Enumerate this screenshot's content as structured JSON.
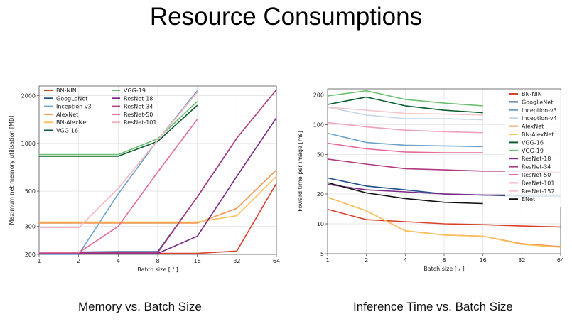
{
  "slide": {
    "title": "Resource Consumptions",
    "caption_left": "Memory vs. Batch Size",
    "caption_right": "Inference Time vs. Batch Size"
  },
  "chart_data": [
    {
      "type": "line",
      "title": "",
      "xlabel": "Batch size [ / ]",
      "ylabel": "Maximum net memory utilisation [MB]",
      "x_scale": "log2",
      "y_scale": "log",
      "x": [
        1,
        2,
        4,
        8,
        16,
        32,
        64
      ],
      "x_ticks": [
        "1",
        "2",
        "4",
        "8",
        "16",
        "32",
        "64"
      ],
      "y_ticks": [
        200,
        300,
        500,
        1000,
        2000
      ],
      "y_tick_labels": [
        "200",
        "300",
        "500",
        "1000",
        "2000"
      ],
      "xlim": [
        1,
        64
      ],
      "ylim": [
        200,
        2300
      ],
      "grid": true,
      "legend_position": "top-left",
      "legend_columns": 2,
      "series": [
        {
          "name": "BN-NIN",
          "color": "#d7402b",
          "values": [
            203,
            203,
            203,
            203,
            203,
            210,
            560
          ]
        },
        {
          "name": "GoogLeNet",
          "color": "#1f4e8c",
          "values": [
            205,
            207,
            208,
            208,
            460,
            1080,
            null
          ]
        },
        {
          "name": "Inception-v3",
          "color": "#6ea2c9",
          "values": [
            200,
            200,
            480,
            1050,
            2150,
            null,
            null
          ]
        },
        {
          "name": "AlexNet",
          "color": "#f0934d",
          "values": [
            315,
            315,
            315,
            315,
            315,
            390,
            680
          ]
        },
        {
          "name": "BN-AlexNet",
          "color": "#fbc15e",
          "values": [
            320,
            320,
            320,
            320,
            320,
            350,
            620
          ]
        },
        {
          "name": "VGG-16",
          "color": "#0c5e31",
          "values": [
            830,
            830,
            830,
            1030,
            1740,
            null,
            null
          ]
        },
        {
          "name": "VGG-19",
          "color": "#6cbf72",
          "values": [
            850,
            850,
            850,
            1070,
            1840,
            null,
            null
          ]
        },
        {
          "name": "ResNet-18",
          "color": "#7b2a86",
          "values": [
            203,
            203,
            203,
            203,
            260,
            620,
            1450
          ]
        },
        {
          "name": "ResNet-34",
          "color": "#b03a80",
          "values": [
            205,
            205,
            205,
            205,
            460,
            1080,
            2180
          ]
        },
        {
          "name": "ResNet-50",
          "color": "#e46a9a",
          "values": [
            205,
            205,
            300,
            660,
            1420,
            null,
            null
          ]
        },
        {
          "name": "ResNet-101",
          "color": "#f5b6c2",
          "values": [
            295,
            295,
            520,
            1050,
            2100,
            null,
            null
          ]
        }
      ]
    },
    {
      "type": "line",
      "title": "",
      "xlabel": "Batch size [ / ]",
      "ylabel": "Foward time per image [ms]",
      "x_scale": "log2",
      "y_scale": "log",
      "x": [
        1,
        2,
        4,
        8,
        16,
        32,
        64
      ],
      "x_ticks": [
        "1",
        "2",
        "4",
        "8",
        "16",
        "32",
        "64"
      ],
      "y_ticks": [
        5,
        10,
        20,
        50,
        100,
        200
      ],
      "y_tick_labels": [
        "5",
        "10",
        "20",
        "50",
        "100",
        "200"
      ],
      "xlim": [
        1,
        64
      ],
      "ylim": [
        5,
        230
      ],
      "grid": true,
      "legend_position": "right",
      "legend_columns": 1,
      "series": [
        {
          "name": "BN-NIN",
          "color": "#d7402b",
          "values": [
            14,
            11,
            10.5,
            10,
            9.8,
            9.5,
            9.3
          ]
        },
        {
          "name": "GoogLeNet",
          "color": "#1f4e8c",
          "values": [
            29,
            24,
            22,
            20,
            19.5,
            19,
            19
          ]
        },
        {
          "name": "Inception-v3",
          "color": "#6ea2c9",
          "values": [
            82,
            66,
            62,
            61,
            60,
            null,
            null
          ]
        },
        {
          "name": "Inception-v4",
          "color": "#c5d6ea",
          "values": [
            150,
            125,
            115,
            115,
            112,
            null,
            null
          ]
        },
        {
          "name": "AlexNet",
          "color": "#f0934d",
          "values": [
            18.5,
            13.5,
            8.5,
            7.7,
            7.5,
            6.3,
            5.9
          ]
        },
        {
          "name": "BN-AlexNet",
          "color": "#fbc15e",
          "values": [
            18.5,
            13.5,
            8.5,
            7.7,
            7.5,
            6.2,
            5.8
          ]
        },
        {
          "name": "VGG-16",
          "color": "#0c5e31",
          "values": [
            160,
            190,
            155,
            140,
            132,
            null,
            null
          ]
        },
        {
          "name": "VGG-19",
          "color": "#6cbf72",
          "values": [
            195,
            220,
            180,
            165,
            155,
            null,
            null
          ]
        },
        {
          "name": "ResNet-18",
          "color": "#7b2a86",
          "values": [
            25,
            22,
            21,
            20,
            19.5,
            19.5,
            19.5
          ]
        },
        {
          "name": "ResNet-34",
          "color": "#b03a80",
          "values": [
            45,
            40,
            36,
            35,
            34,
            34,
            33
          ]
        },
        {
          "name": "ResNet-50",
          "color": "#e46a9a",
          "values": [
            65,
            57,
            53,
            52,
            52,
            null,
            null
          ]
        },
        {
          "name": "ResNet-101",
          "color": "#f0a0b8",
          "values": [
            105,
            95,
            88,
            85,
            83,
            null,
            null
          ]
        },
        {
          "name": "ResNet-152",
          "color": "#f6c6ce",
          "values": [
            150,
            140,
            130,
            128,
            125,
            null,
            null
          ]
        },
        {
          "name": "ENet",
          "color": "#111111",
          "values": [
            26,
            20.5,
            18,
            16.5,
            16,
            null,
            null
          ]
        }
      ]
    }
  ]
}
